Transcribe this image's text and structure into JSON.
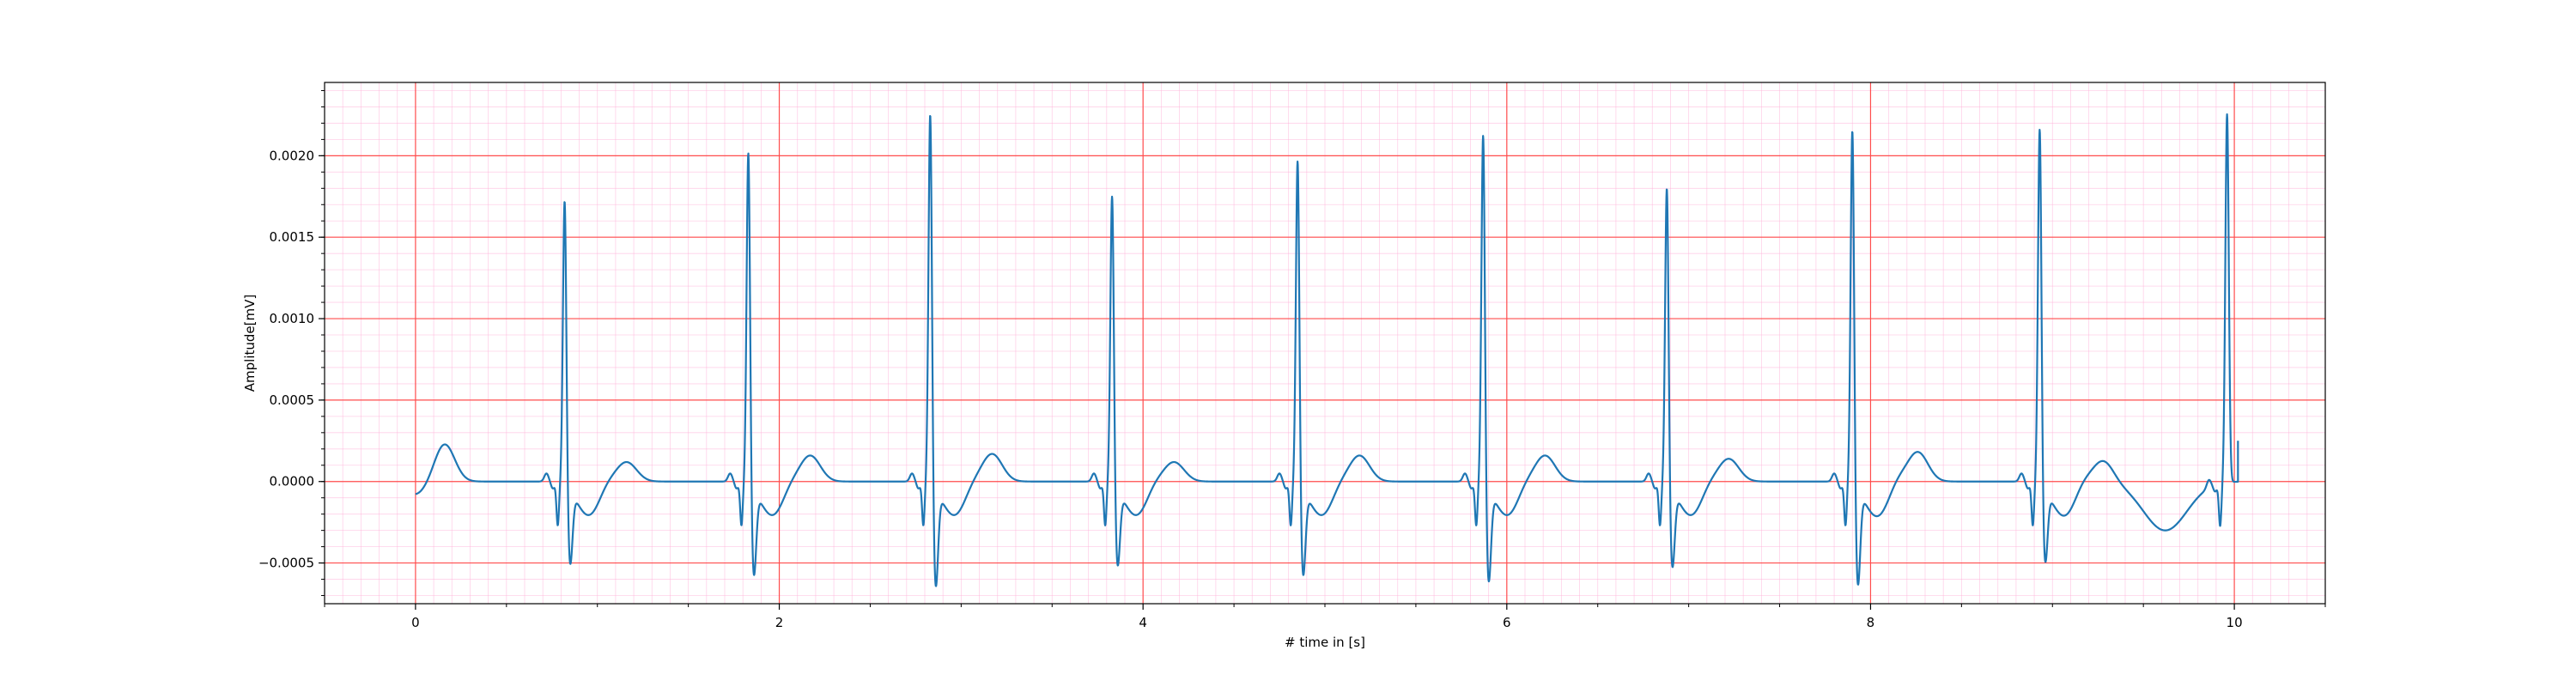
{
  "chart_data": {
    "type": "line",
    "title": "",
    "xlabel": "# time in [s]",
    "ylabel": "Amplitude[mV]",
    "xlim": [
      -0.5,
      10.5
    ],
    "ylim": [
      -0.00075,
      0.00245
    ],
    "x_ticks": [
      0,
      2,
      4,
      6,
      8,
      10
    ],
    "x_tick_labels": [
      "0",
      "2",
      "4",
      "6",
      "8",
      "10"
    ],
    "y_ticks": [
      -0.0005,
      0.0,
      0.0005,
      0.001,
      0.0015,
      0.002
    ],
    "y_tick_labels": [
      "−0.0005",
      "0.0000",
      "0.0005",
      "0.0010",
      "0.0015",
      "0.0020"
    ],
    "grid": {
      "major": true,
      "minor": true,
      "major_color": "#ff4d4d",
      "minor_color": "#ffb3d9"
    },
    "line_color": "#1f77b4",
    "series": [
      {
        "name": "",
        "beats": [
          {
            "r_time": 0.82,
            "r_peak": 0.00178,
            "s_min": -0.00045,
            "t_time": 1.16,
            "t_amp": 0.00012
          },
          {
            "r_time": 1.83,
            "r_peak": 0.00208,
            "s_min": -0.00052,
            "t_time": 2.17,
            "t_amp": 0.00016
          },
          {
            "r_time": 2.83,
            "r_peak": 0.00232,
            "s_min": -0.00059,
            "t_time": 3.17,
            "t_amp": 0.00017
          },
          {
            "r_time": 3.83,
            "r_peak": 0.00181,
            "s_min": -0.00046,
            "t_time": 4.17,
            "t_amp": 0.00012
          },
          {
            "r_time": 4.85,
            "r_peak": 0.00203,
            "s_min": -0.00052,
            "t_time": 5.19,
            "t_amp": 0.00016
          },
          {
            "r_time": 5.87,
            "r_peak": 0.00219,
            "s_min": -0.00056,
            "t_time": 6.21,
            "t_amp": 0.00016
          },
          {
            "r_time": 6.88,
            "r_peak": 0.00186,
            "s_min": -0.00047,
            "t_time": 7.22,
            "t_amp": 0.00014
          },
          {
            "r_time": 7.9,
            "r_peak": 0.00222,
            "s_min": -0.00058,
            "t_time": 8.26,
            "t_amp": 0.00018
          },
          {
            "r_time": 8.93,
            "r_peak": 0.00222,
            "s_min": -0.00044,
            "t_time": 9.28,
            "t_amp": 0.00013
          },
          {
            "r_time": 9.96,
            "r_peak": 0.00226,
            "s_min": -3e-05,
            "t_time": 10.0,
            "t_amp": 0.0
          }
        ],
        "start": {
          "x": 0.0,
          "y": -8e-05
        },
        "first_t_wave": {
          "x": 0.16,
          "y": 0.00023
        },
        "end": {
          "x": 10.02,
          "y": 0.0
        }
      }
    ]
  }
}
